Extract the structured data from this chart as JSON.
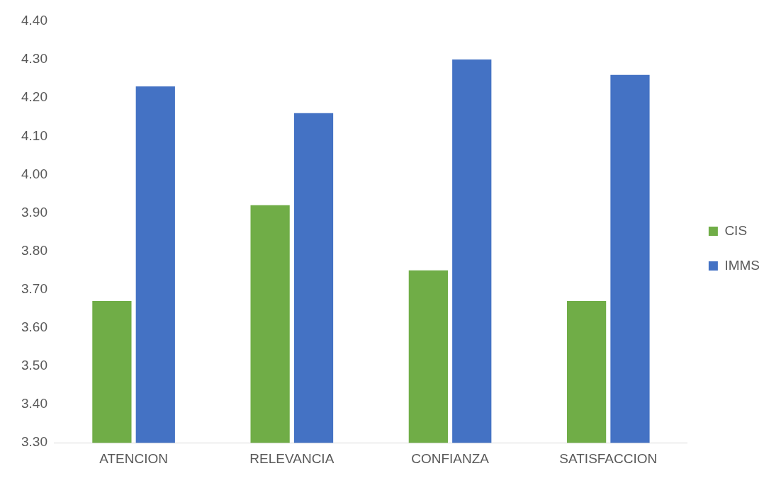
{
  "chart_data": {
    "type": "bar",
    "categories": [
      "ATENCION",
      "RELEVANCIA",
      "CONFIANZA",
      "SATISFACCION"
    ],
    "series": [
      {
        "name": "CIS",
        "color": "#70ad47",
        "values": [
          3.67,
          3.92,
          3.75,
          3.67
        ]
      },
      {
        "name": "IMMS",
        "color": "#4472c4",
        "values": [
          4.23,
          4.16,
          4.3,
          4.26
        ]
      }
    ],
    "ylim": [
      3.3,
      4.4
    ],
    "yticks": [
      {
        "value": 3.3,
        "label": "3.30"
      },
      {
        "value": 3.4,
        "label": "3.40"
      },
      {
        "value": 3.5,
        "label": "3.50"
      },
      {
        "value": 3.6,
        "label": "3.60"
      },
      {
        "value": 3.7,
        "label": "3.70"
      },
      {
        "value": 3.8,
        "label": "3.80"
      },
      {
        "value": 3.9,
        "label": "3.90"
      },
      {
        "value": 4.0,
        "label": "4.00"
      },
      {
        "value": 4.1,
        "label": "4.10"
      },
      {
        "value": 4.2,
        "label": "4.20"
      },
      {
        "value": 4.3,
        "label": "4.30"
      },
      {
        "value": 4.4,
        "label": "4.40"
      }
    ],
    "grid": false,
    "legend": "right"
  }
}
